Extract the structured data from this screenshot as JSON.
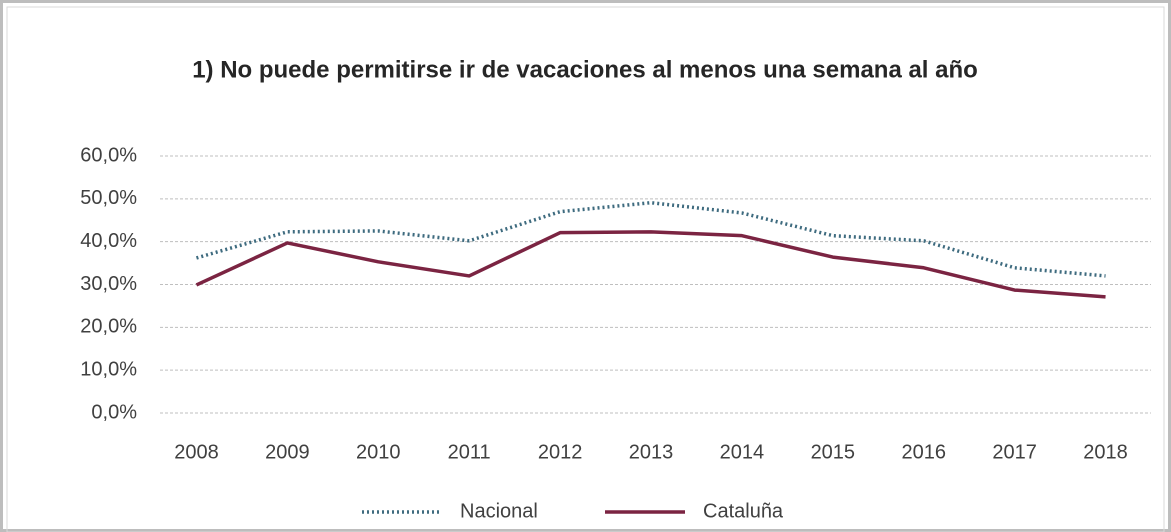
{
  "chart_data": {
    "type": "line",
    "title": "1) No puede permitirse ir de vacaciones al menos una semana al año",
    "categories": [
      "2008",
      "2009",
      "2010",
      "2011",
      "2012",
      "2013",
      "2014",
      "2015",
      "2016",
      "2017",
      "2018"
    ],
    "series": [
      {
        "name": "Nacional",
        "color": "#3e6b7f",
        "style": "dotted",
        "values": [
          36.2,
          42.3,
          42.5,
          40.2,
          47.0,
          49.1,
          46.7,
          41.4,
          40.2,
          33.9,
          32.0
        ]
      },
      {
        "name": "Cataluña",
        "color": "#7b2442",
        "style": "solid",
        "values": [
          29.9,
          39.7,
          35.3,
          32.0,
          42.1,
          42.3,
          41.4,
          36.4,
          33.9,
          28.7,
          27.1
        ]
      }
    ],
    "ylim": [
      0,
      60
    ],
    "yticks": [
      {
        "value": 0,
        "label": "0,0%"
      },
      {
        "value": 10,
        "label": "10,0%"
      },
      {
        "value": 20,
        "label": "20,0%"
      },
      {
        "value": 30,
        "label": "30,0%"
      },
      {
        "value": 40,
        "label": "40,0%"
      },
      {
        "value": 50,
        "label": "50,0%"
      },
      {
        "value": 60,
        "label": "60,0%"
      }
    ],
    "grid": true,
    "legend": "bottom"
  }
}
